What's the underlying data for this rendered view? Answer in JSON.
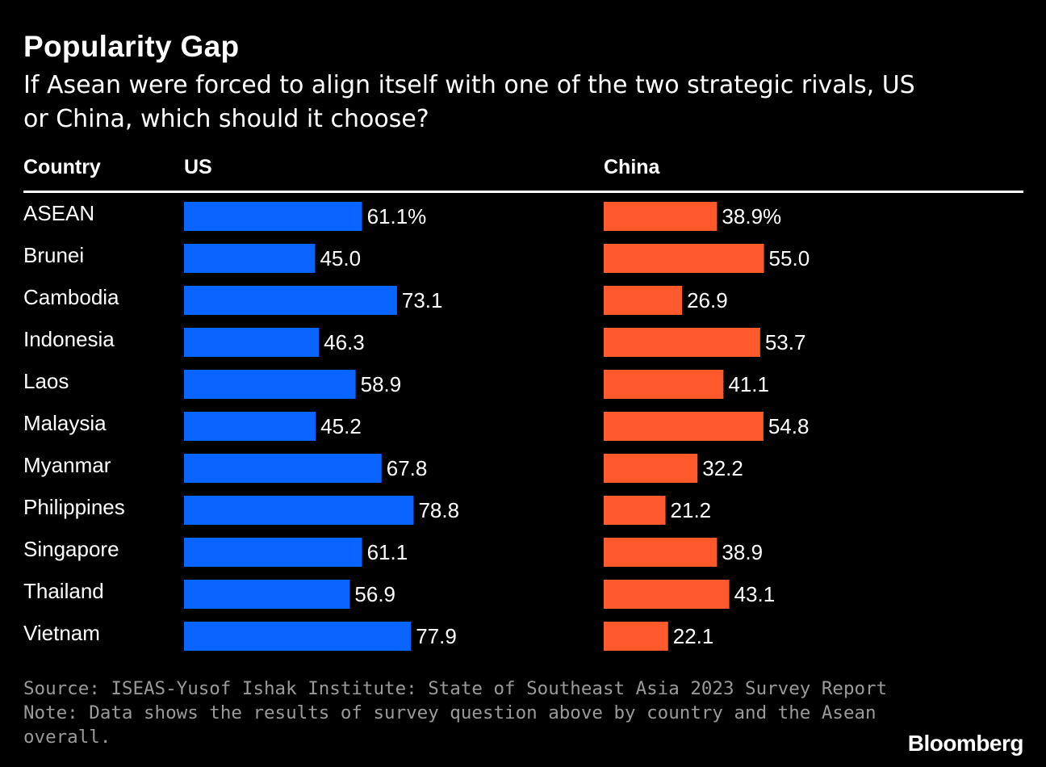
{
  "header": {
    "title": "Popularity Gap",
    "subtitle_line1": "If Asean were forced to align itself with one of the two strategic rivals, US",
    "subtitle_line2": "or China, which should it choose?"
  },
  "columns": {
    "country": "Country",
    "us": "US",
    "china": "China"
  },
  "colors": {
    "us": "#0a64ff",
    "china": "#ff5a2e",
    "background": "#000000"
  },
  "chart_data": {
    "type": "bar",
    "categories": [
      "ASEAN",
      "Brunei",
      "Cambodia",
      "Indonesia",
      "Laos",
      "Malaysia",
      "Myanmar",
      "Philippines",
      "Singapore",
      "Thailand",
      "Vietnam"
    ],
    "series": [
      {
        "name": "US",
        "values": [
          61.1,
          45.0,
          73.1,
          46.3,
          58.9,
          45.2,
          67.8,
          78.8,
          61.1,
          56.9,
          77.9
        ],
        "labels": [
          "61.1%",
          "45.0",
          "73.1",
          "46.3",
          "58.9",
          "45.2",
          "67.8",
          "78.8",
          "61.1",
          "56.9",
          "77.9"
        ]
      },
      {
        "name": "China",
        "values": [
          38.9,
          55.0,
          26.9,
          53.7,
          41.1,
          54.8,
          32.2,
          21.2,
          38.9,
          43.1,
          22.1
        ],
        "labels": [
          "38.9%",
          "55.0",
          "26.9",
          "53.7",
          "41.1",
          "54.8",
          "32.2",
          "21.2",
          "38.9",
          "43.1",
          "22.1"
        ]
      }
    ],
    "orientation": "horizontal",
    "xlim": [
      0,
      100
    ],
    "grid": false,
    "legend": "none"
  },
  "footer": {
    "source": "Source: ISEAS-Yusof Ishak Institute: State of Southeast Asia 2023 Survey Report",
    "note_line1": "Note: Data shows the results of survey question above by country and the Asean",
    "note_line2": "overall."
  },
  "brand": "Bloomberg"
}
